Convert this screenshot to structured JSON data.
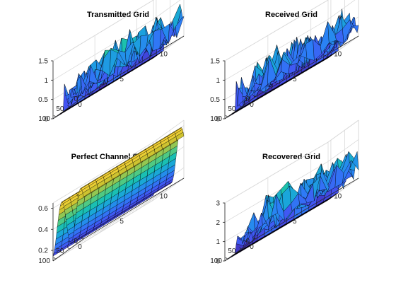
{
  "chart_data": [
    {
      "type": "surface",
      "title": "Transmitted Grid",
      "x_ticks": [
        "0",
        "5",
        "10"
      ],
      "y_ticks": [
        "0",
        "50",
        "100"
      ],
      "z_ticks": [
        "0",
        "0.5",
        "1",
        "1.5"
      ],
      "xlim": [
        0,
        12
      ],
      "ylim": [
        0,
        110
      ],
      "zlim": [
        0,
        1.5
      ],
      "surface": {
        "kind": "grid_random",
        "zero_y_above": 72,
        "base": 0.3,
        "amplitude": 0.75,
        "seed": 11
      }
    },
    {
      "type": "surface",
      "title": "Received Grid",
      "x_ticks": [
        "0",
        "5",
        "10"
      ],
      "y_ticks": [
        "0",
        "50",
        "100"
      ],
      "z_ticks": [
        "0",
        "0.5",
        "1",
        "1.5"
      ],
      "xlim": [
        0,
        12
      ],
      "ylim": [
        0,
        110
      ],
      "zlim": [
        0,
        1.5
      ],
      "surface": {
        "kind": "grid_random",
        "zero_y_above": 72,
        "base": 0.25,
        "amplitude": 0.85,
        "seed": 23
      }
    },
    {
      "type": "surface",
      "title": "Perfect Channel Estimate",
      "x_ticks": [
        "0",
        "5",
        "10"
      ],
      "y_ticks": [
        "0",
        "50",
        "100"
      ],
      "z_ticks": [
        "0.2",
        "0.4",
        "0.6"
      ],
      "xlim": [
        0,
        12
      ],
      "ylim": [
        0,
        110
      ],
      "zlim": [
        0.1,
        0.65
      ],
      "surface": {
        "kind": "channel_wave",
        "mean": 0.37,
        "amp": 0.23,
        "period": 68
      }
    },
    {
      "type": "surface",
      "title": "Recovered Grid",
      "x_ticks": [
        "0",
        "5",
        "10"
      ],
      "y_ticks": [
        "0",
        "50",
        "100"
      ],
      "z_ticks": [
        "0",
        "1",
        "2",
        "3"
      ],
      "xlim": [
        0,
        12
      ],
      "ylim": [
        0,
        110
      ],
      "zlim": [
        0,
        3
      ],
      "surface": {
        "kind": "grid_random",
        "zero_y_above": 72,
        "base": 0.6,
        "amplitude": 1.6,
        "seed": 37
      }
    }
  ],
  "colormap": [
    "#3e26a8",
    "#4353f3",
    "#2b7ff6",
    "#1aa4dc",
    "#1ac1b0",
    "#63cc72",
    "#c8c12f",
    "#fbd436",
    "#f9fb15"
  ],
  "colors": {
    "axis": "#262626",
    "grid": "#d9d9d9",
    "edge": "#000000",
    "background": "#ffffff"
  }
}
